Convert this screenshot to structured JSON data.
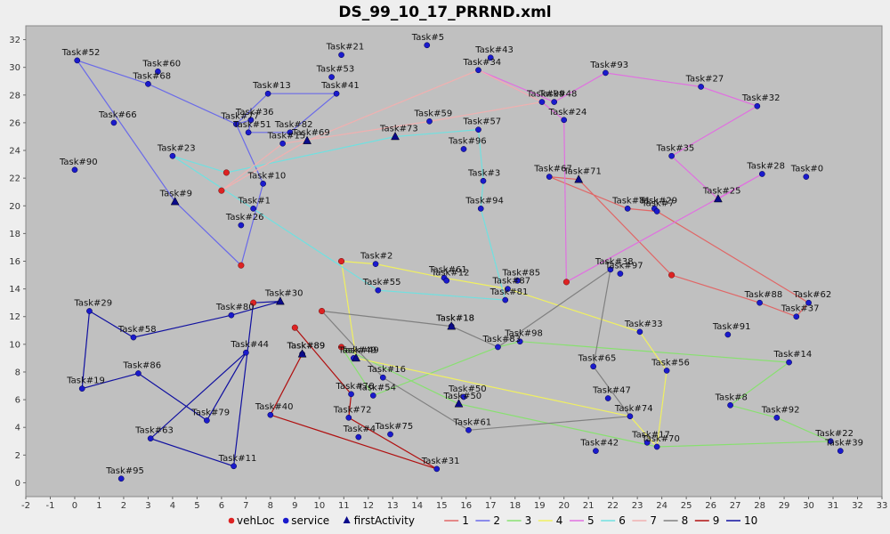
{
  "chart_data": {
    "type": "scatter",
    "title": "DS_99_10_17_PRRND.xml",
    "xlim": [
      -2,
      33
    ],
    "ylim": [
      -1,
      33
    ],
    "x_ticks": [
      -2,
      -1,
      0,
      1,
      2,
      3,
      4,
      5,
      6,
      7,
      8,
      9,
      10,
      11,
      12,
      13,
      14,
      15,
      16,
      17,
      18,
      19,
      20,
      21,
      22,
      23,
      24,
      25,
      26,
      27,
      28,
      29,
      30,
      31,
      32,
      33
    ],
    "y_ticks": [
      0,
      2,
      4,
      6,
      8,
      10,
      12,
      14,
      16,
      18,
      20,
      22,
      24,
      26,
      28,
      30,
      32
    ],
    "grid": false,
    "legend_position": "bottom",
    "colors": {
      "plot_bg": "#c0c0c0",
      "page_bg": "#eeeeee",
      "vehLoc": "#dd2222",
      "service": "#1a1acc",
      "firstActivity": "#0a0a8a"
    },
    "legend": [
      {
        "label": "vehLoc",
        "kind": "circle",
        "color": "#dd2222"
      },
      {
        "label": "service",
        "kind": "circle",
        "color": "#1a1acc"
      },
      {
        "label": "firstActivity",
        "kind": "triangle",
        "color": "#0a0a8a"
      },
      {
        "label": "1",
        "kind": "line",
        "color": "#e06666"
      },
      {
        "label": "2",
        "kind": "line",
        "color": "#6a6ae8"
      },
      {
        "label": "3",
        "kind": "line",
        "color": "#88e070"
      },
      {
        "label": "4",
        "kind": "line",
        "color": "#f0f060"
      },
      {
        "label": "5",
        "kind": "line",
        "color": "#e070e0"
      },
      {
        "label": "6",
        "kind": "line",
        "color": "#70e0e0"
      },
      {
        "label": "7",
        "kind": "line",
        "color": "#f0b0b0"
      },
      {
        "label": "8",
        "kind": "line",
        "color": "#808080"
      },
      {
        "label": "9",
        "kind": "line",
        "color": "#b01010"
      },
      {
        "label": "10",
        "kind": "line",
        "color": "#1010a0"
      }
    ],
    "veh_locs": [
      [
        6.2,
        22.4
      ],
      [
        6.0,
        21.1
      ],
      [
        6.8,
        15.7
      ],
      [
        10.9,
        16.0
      ],
      [
        20.1,
        14.5
      ],
      [
        24.4,
        15.0
      ],
      [
        10.1,
        12.4
      ],
      [
        7.3,
        13.0
      ],
      [
        9.0,
        11.2
      ],
      [
        10.9,
        9.8
      ]
    ],
    "tasks": [
      {
        "name": "Task#52",
        "x": 0.1,
        "y": 30.5
      },
      {
        "name": "Task#60",
        "x": 3.4,
        "y": 29.7
      },
      {
        "name": "Task#68",
        "x": 3.0,
        "y": 28.8
      },
      {
        "name": "Task#66",
        "x": 1.6,
        "y": 26.0
      },
      {
        "name": "Task#90",
        "x": 0.0,
        "y": 22.6
      },
      {
        "name": "Task#21",
        "x": 10.9,
        "y": 30.9
      },
      {
        "name": "Task#5",
        "x": 14.4,
        "y": 31.6
      },
      {
        "name": "Task#43",
        "x": 17.0,
        "y": 30.7
      },
      {
        "name": "Task#53",
        "x": 10.5,
        "y": 29.3
      },
      {
        "name": "Task#34",
        "x": 16.5,
        "y": 29.8
      },
      {
        "name": "Task#13",
        "x": 7.9,
        "y": 28.1
      },
      {
        "name": "Task#41",
        "x": 10.7,
        "y": 28.1
      },
      {
        "name": "Task#93",
        "x": 21.7,
        "y": 29.6
      },
      {
        "name": "Task#27",
        "x": 25.6,
        "y": 28.6
      },
      {
        "name": "Task#32",
        "x": 27.9,
        "y": 27.2
      },
      {
        "name": "Task#99",
        "x": 19.1,
        "y": 27.5
      },
      {
        "name": "Task#48",
        "x": 19.6,
        "y": 27.5
      },
      {
        "name": "Task#36",
        "x": 7.2,
        "y": 26.2
      },
      {
        "name": "Task#77",
        "x": 6.6,
        "y": 25.9
      },
      {
        "name": "Task#51",
        "x": 7.1,
        "y": 25.3
      },
      {
        "name": "Task#15",
        "x": 8.5,
        "y": 24.5
      },
      {
        "name": "Task#82",
        "x": 8.8,
        "y": 25.3
      },
      {
        "name": "Task#59",
        "x": 14.5,
        "y": 26.1
      },
      {
        "name": "Task#57",
        "x": 16.5,
        "y": 25.5
      },
      {
        "name": "Task#24",
        "x": 20.0,
        "y": 26.2
      },
      {
        "name": "Task#96",
        "x": 15.9,
        "y": 24.1
      },
      {
        "name": "Task#23",
        "x": 4.0,
        "y": 23.6
      },
      {
        "name": "Task#35",
        "x": 24.4,
        "y": 23.6
      },
      {
        "name": "Task#10",
        "x": 7.7,
        "y": 21.6
      },
      {
        "name": "Task#3",
        "x": 16.7,
        "y": 21.8
      },
      {
        "name": "Task#67",
        "x": 19.4,
        "y": 22.1
      },
      {
        "name": "Task#28",
        "x": 28.1,
        "y": 22.3
      },
      {
        "name": "Task#0",
        "x": 29.9,
        "y": 22.1
      },
      {
        "name": "Task#1",
        "x": 7.3,
        "y": 19.8
      },
      {
        "name": "Task#94",
        "x": 16.6,
        "y": 19.8
      },
      {
        "name": "Task#81",
        "x": 22.6,
        "y": 19.8
      },
      {
        "name": "Task#29",
        "x": 23.7,
        "y": 19.8
      },
      {
        "name": "Task#7",
        "x": 23.8,
        "y": 19.6
      },
      {
        "name": "Task#26",
        "x": 6.8,
        "y": 18.6
      },
      {
        "name": "Task#2",
        "x": 12.3,
        "y": 15.8
      },
      {
        "name": "Task#38",
        "x": 21.9,
        "y": 15.4
      },
      {
        "name": "Task#97",
        "x": 22.3,
        "y": 15.1
      },
      {
        "name": "Task#61",
        "x": 15.1,
        "y": 14.8
      },
      {
        "name": "Task#12",
        "x": 15.2,
        "y": 14.6
      },
      {
        "name": "Task#85",
        "x": 18.1,
        "y": 14.6
      },
      {
        "name": "Task#55",
        "x": 12.4,
        "y": 13.9
      },
      {
        "name": "Task#87",
        "x": 17.7,
        "y": 14.0
      },
      {
        "name": "Task#81",
        "x": 17.6,
        "y": 13.2
      },
      {
        "name": "Task#88",
        "x": 28.0,
        "y": 13.0
      },
      {
        "name": "Task#62",
        "x": 30.0,
        "y": 13.0
      },
      {
        "name": "Task#37",
        "x": 29.5,
        "y": 12.0
      },
      {
        "name": "Task#29",
        "x": 0.6,
        "y": 12.4
      },
      {
        "name": "Task#80",
        "x": 6.4,
        "y": 12.1
      },
      {
        "name": "Task#58",
        "x": 2.4,
        "y": 10.5
      },
      {
        "name": "Task#18",
        "x": 15.4,
        "y": 11.3
      },
      {
        "name": "Task#33",
        "x": 23.1,
        "y": 10.9
      },
      {
        "name": "Task#91",
        "x": 26.7,
        "y": 10.7
      },
      {
        "name": "Task#83",
        "x": 17.3,
        "y": 9.8
      },
      {
        "name": "Task#98",
        "x": 18.2,
        "y": 10.2
      },
      {
        "name": "Task#44",
        "x": 7.0,
        "y": 9.4
      },
      {
        "name": "Task#49",
        "x": 11.4,
        "y": 9.0
      },
      {
        "name": "Task#89",
        "x": 9.3,
        "y": 9.3
      },
      {
        "name": "Task#14",
        "x": 29.2,
        "y": 8.7
      },
      {
        "name": "Task#86",
        "x": 2.6,
        "y": 7.9
      },
      {
        "name": "Task#16",
        "x": 12.6,
        "y": 7.6
      },
      {
        "name": "Task#65",
        "x": 21.2,
        "y": 8.4
      },
      {
        "name": "Task#56",
        "x": 24.2,
        "y": 8.1
      },
      {
        "name": "Task#19",
        "x": 0.3,
        "y": 6.8
      },
      {
        "name": "Task#76",
        "x": 11.3,
        "y": 6.4
      },
      {
        "name": "Task#54",
        "x": 12.2,
        "y": 6.3
      },
      {
        "name": "Task#50",
        "x": 15.9,
        "y": 6.2
      },
      {
        "name": "Task#47",
        "x": 21.8,
        "y": 6.1
      },
      {
        "name": "Task#8",
        "x": 26.8,
        "y": 5.6
      },
      {
        "name": "Task#79",
        "x": 5.4,
        "y": 4.5
      },
      {
        "name": "Task#40",
        "x": 8.0,
        "y": 4.9
      },
      {
        "name": "Task#72",
        "x": 11.2,
        "y": 4.7
      },
      {
        "name": "Task#74",
        "x": 22.7,
        "y": 4.8
      },
      {
        "name": "Task#92",
        "x": 28.7,
        "y": 4.7
      },
      {
        "name": "Task#61",
        "x": 16.1,
        "y": 3.8
      },
      {
        "name": "Task#4",
        "x": 11.6,
        "y": 3.3
      },
      {
        "name": "Task#75",
        "x": 12.9,
        "y": 3.5
      },
      {
        "name": "Task#63",
        "x": 3.1,
        "y": 3.2
      },
      {
        "name": "Task#17",
        "x": 23.4,
        "y": 2.9
      },
      {
        "name": "Task#70",
        "x": 23.8,
        "y": 2.6
      },
      {
        "name": "Task#22",
        "x": 30.9,
        "y": 3.0
      },
      {
        "name": "Task#39",
        "x": 31.3,
        "y": 2.3
      },
      {
        "name": "Task#42",
        "x": 21.3,
        "y": 2.3
      },
      {
        "name": "Task#11",
        "x": 6.5,
        "y": 1.2
      },
      {
        "name": "Task#31",
        "x": 14.8,
        "y": 1.0
      },
      {
        "name": "Task#95",
        "x": 1.9,
        "y": 0.3
      }
    ],
    "first_activities": [
      {
        "name": "Task#9",
        "x": 4.1,
        "y": 20.3
      },
      {
        "name": "Task#69",
        "x": 9.5,
        "y": 24.7
      },
      {
        "name": "Task#73",
        "x": 13.1,
        "y": 25.0
      },
      {
        "name": "Task#71",
        "x": 20.6,
        "y": 21.9
      },
      {
        "name": "Task#25",
        "x": 26.3,
        "y": 20.5
      },
      {
        "name": "Task#30",
        "x": 8.4,
        "y": 13.1
      },
      {
        "name": "Task#18",
        "x": 15.4,
        "y": 11.3
      },
      {
        "name": "Task#49",
        "x": 11.5,
        "y": 9.0
      },
      {
        "name": "Task#89",
        "x": 9.3,
        "y": 9.3
      },
      {
        "name": "Task#50",
        "x": 15.7,
        "y": 5.7
      }
    ],
    "routes": [
      {
        "id": "1",
        "color": "#e06666",
        "points": [
          [
            24.4,
            15.0
          ],
          [
            28.0,
            13.0
          ],
          [
            29.5,
            12.0
          ],
          [
            30.0,
            13.0
          ],
          [
            23.8,
            19.6
          ],
          [
            22.6,
            19.8
          ],
          [
            19.4,
            22.1
          ],
          [
            20.6,
            21.9
          ],
          [
            24.4,
            15.0
          ]
        ]
      },
      {
        "id": "2",
        "color": "#6a6ae8",
        "points": [
          [
            6.8,
            15.7
          ],
          [
            4.1,
            20.3
          ],
          [
            0.1,
            30.5
          ],
          [
            3.0,
            28.8
          ],
          [
            6.6,
            25.9
          ],
          [
            7.2,
            26.2
          ],
          [
            7.1,
            25.3
          ],
          [
            8.8,
            25.3
          ],
          [
            10.7,
            28.1
          ],
          [
            7.9,
            28.1
          ],
          [
            6.6,
            25.9
          ],
          [
            7.7,
            21.6
          ],
          [
            6.8,
            15.7
          ]
        ]
      },
      {
        "id": "3",
        "color": "#88e070",
        "points": [
          [
            10.9,
            9.8
          ],
          [
            12.2,
            6.3
          ],
          [
            17.3,
            9.8
          ],
          [
            18.2,
            10.2
          ],
          [
            29.2,
            8.7
          ],
          [
            26.8,
            5.6
          ],
          [
            28.7,
            4.7
          ],
          [
            30.9,
            3.0
          ],
          [
            23.8,
            2.6
          ],
          [
            15.7,
            5.7
          ],
          [
            10.9,
            9.8
          ]
        ]
      },
      {
        "id": "4",
        "color": "#f0f060",
        "points": [
          [
            10.9,
            16.0
          ],
          [
            12.3,
            15.8
          ],
          [
            15.1,
            14.8
          ],
          [
            17.7,
            14.0
          ],
          [
            23.1,
            10.9
          ],
          [
            24.2,
            8.1
          ],
          [
            23.8,
            2.6
          ],
          [
            22.7,
            4.8
          ],
          [
            11.5,
            9.0
          ],
          [
            10.9,
            16.0
          ]
        ]
      },
      {
        "id": "5",
        "color": "#e070e0",
        "points": [
          [
            20.1,
            14.5
          ],
          [
            28.1,
            22.3
          ],
          [
            26.3,
            20.5
          ],
          [
            24.4,
            23.6
          ],
          [
            27.9,
            27.2
          ],
          [
            25.6,
            28.6
          ],
          [
            21.7,
            29.6
          ],
          [
            19.6,
            27.5
          ],
          [
            16.5,
            29.8
          ],
          [
            19.1,
            27.5
          ],
          [
            20.0,
            26.2
          ],
          [
            20.1,
            14.5
          ]
        ]
      },
      {
        "id": "6",
        "color": "#70e0e0",
        "points": [
          [
            6.2,
            22.4
          ],
          [
            13.1,
            25.0
          ],
          [
            16.5,
            25.5
          ],
          [
            16.7,
            21.8
          ],
          [
            16.6,
            19.8
          ],
          [
            17.6,
            13.2
          ],
          [
            12.4,
            13.9
          ],
          [
            4.0,
            23.6
          ],
          [
            6.2,
            22.4
          ]
        ]
      },
      {
        "id": "7",
        "color": "#f0b0b0",
        "points": [
          [
            6.0,
            21.1
          ],
          [
            9.5,
            24.7
          ],
          [
            16.5,
            29.8
          ],
          [
            19.1,
            27.5
          ],
          [
            14.5,
            26.1
          ],
          [
            8.5,
            24.5
          ],
          [
            6.0,
            21.1
          ]
        ]
      },
      {
        "id": "8",
        "color": "#808080",
        "points": [
          [
            10.1,
            12.4
          ],
          [
            15.4,
            11.3
          ],
          [
            17.3,
            9.8
          ],
          [
            21.9,
            15.4
          ],
          [
            21.2,
            8.4
          ],
          [
            22.7,
            4.8
          ],
          [
            16.1,
            3.8
          ],
          [
            12.6,
            7.6
          ],
          [
            10.1,
            12.4
          ]
        ]
      },
      {
        "id": "9",
        "color": "#b01010",
        "points": [
          [
            9.0,
            11.2
          ],
          [
            11.3,
            6.4
          ],
          [
            11.2,
            4.7
          ],
          [
            14.8,
            1.0
          ],
          [
            8.0,
            4.9
          ],
          [
            9.3,
            9.3
          ]
        ]
      },
      {
        "id": "10",
        "color": "#1010a0",
        "points": [
          [
            7.3,
            13.0
          ],
          [
            8.4,
            13.1
          ],
          [
            6.4,
            12.1
          ],
          [
            2.4,
            10.5
          ],
          [
            0.6,
            12.4
          ],
          [
            0.3,
            6.8
          ],
          [
            2.6,
            7.9
          ],
          [
            5.4,
            4.5
          ],
          [
            7.0,
            9.4
          ],
          [
            3.1,
            3.2
          ],
          [
            6.5,
            1.2
          ],
          [
            7.3,
            13.0
          ]
        ]
      }
    ]
  }
}
